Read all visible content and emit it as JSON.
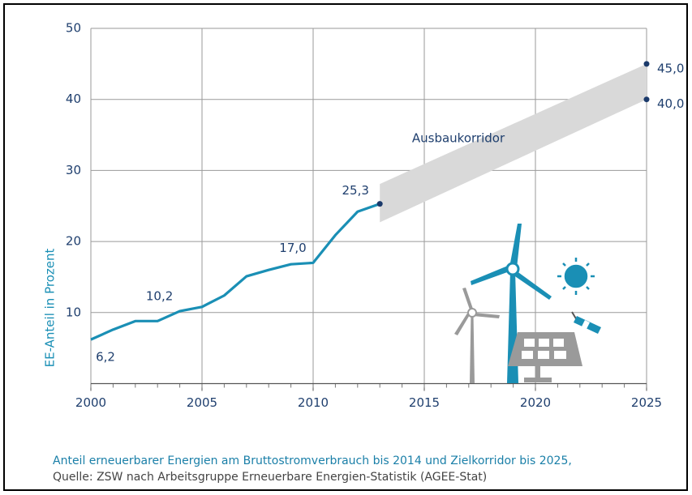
{
  "chart_data": {
    "type": "line",
    "y_label": "EE-Anteil in Prozent",
    "caption": [
      "Anteil erneuerbarer Energien am Bruttostromverbrauch bis 2014 und Zielkorridor bis 2025,",
      "Quelle: ZSW nach Arbeitsgruppe Erneuerbare Energien-Statistik (AGEE-Stat)"
    ],
    "xlim": [
      2000,
      2025
    ],
    "xticks": [
      2000,
      2005,
      2010,
      2015,
      2020,
      2025
    ],
    "ylim": [
      0,
      50
    ],
    "yticks": [
      10,
      20,
      30,
      40,
      50
    ],
    "grid": true,
    "series": [
      {
        "color": "#1a8fb5",
        "x": [
          2000,
          2001,
          2002,
          2003,
          2004,
          2005,
          2006,
          2007,
          2008,
          2009,
          2010,
          2011,
          2012,
          2013
        ],
        "values": [
          6.2,
          7.6,
          8.8,
          8.8,
          10.2,
          10.8,
          12.4,
          15.1,
          16.0,
          16.8,
          17.0,
          20.9,
          24.2,
          25.3
        ],
        "value_labels": [
          "6,2",
          null,
          null,
          null,
          "10,2",
          null,
          null,
          null,
          null,
          null,
          "17,0",
          null,
          null,
          "25,3"
        ]
      }
    ],
    "corridor": {
      "label": "Ausbaukorridor",
      "color": "#d9d9d9",
      "x": [
        2013,
        2025
      ],
      "lower": [
        22.7,
        40
      ],
      "upper": [
        28.1,
        45
      ],
      "lower_labels": [
        null,
        "40,0"
      ],
      "upper_labels": [
        null,
        "45,0"
      ]
    }
  }
}
